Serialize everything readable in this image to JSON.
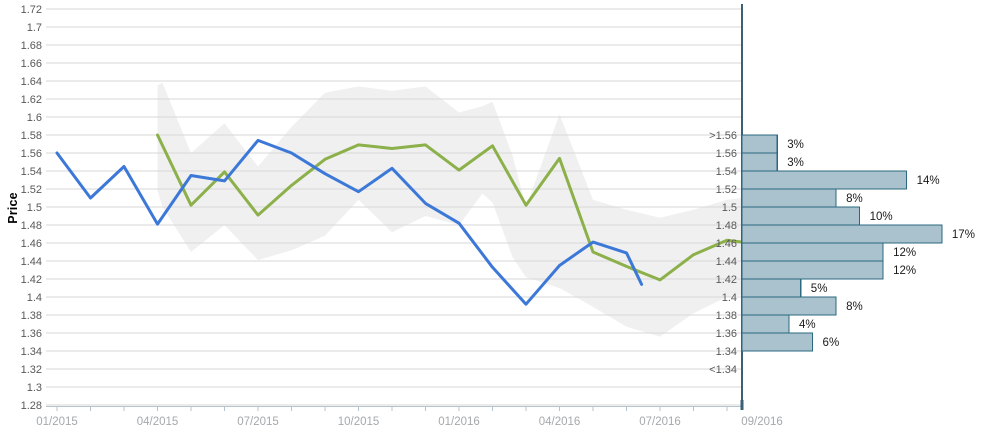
{
  "chart_data": {
    "type": "line",
    "title": "",
    "colors": {
      "band": "#f0f0f0",
      "grid": "#d7d7d7",
      "price_line": "#3c78d8",
      "forecast_line": "#8cb04a",
      "y_tick_text": "#595959",
      "x_tick_text": "#a5a9ad",
      "x_axis_line": "#b6c4ce",
      "hist_axis": "#3b5f75",
      "hist_bar_fill": "#a9c2ce",
      "hist_bar_border": "#2c6880",
      "hist_label_text": "#595959",
      "pct_text": "#1a1a1a",
      "price_label_text": "#3c78d8"
    },
    "price_axis": {
      "label": "Price",
      "min": 1.28,
      "max": 1.72,
      "step": 0.02,
      "tick_labels": [
        "1.72",
        "1.7",
        "1.68",
        "1.66",
        "1.64",
        "1.62",
        "1.6",
        "1.58",
        "1.56",
        "1.54",
        "1.52",
        "1.5",
        "1.48",
        "1.46",
        "1.44",
        "1.42",
        "1.4",
        "1.38",
        "1.36",
        "1.34",
        "1.32",
        "1.3",
        "1.28"
      ]
    },
    "x_axis": {
      "month_tick_count": 21,
      "labels": [
        {
          "m": 0,
          "text": "01/2015"
        },
        {
          "m": 3,
          "text": "04/2015"
        },
        {
          "m": 6,
          "text": "07/2015"
        },
        {
          "m": 9,
          "text": "10/2015"
        },
        {
          "m": 12,
          "text": "01/2016"
        },
        {
          "m": 15,
          "text": "04/2016"
        },
        {
          "m": 18,
          "text": "07/2016"
        }
      ],
      "end_label": "09/2016"
    },
    "series": [
      {
        "name": "forecast",
        "color": "#8cb04a",
        "points": [
          [
            3,
            1.58
          ],
          [
            4,
            1.502
          ],
          [
            5,
            1.539
          ],
          [
            6,
            1.491
          ],
          [
            7,
            1.524
          ],
          [
            8,
            1.553
          ],
          [
            9,
            1.569
          ],
          [
            10,
            1.565
          ],
          [
            11,
            1.569
          ],
          [
            12,
            1.541
          ],
          [
            13,
            1.568
          ],
          [
            14,
            1.502
          ],
          [
            15,
            1.554
          ],
          [
            16,
            1.45
          ],
          [
            17,
            1.434
          ],
          [
            18,
            1.419
          ],
          [
            19,
            1.447
          ],
          [
            20,
            1.463
          ],
          [
            20.45,
            1.461
          ]
        ]
      },
      {
        "name": "price-actual",
        "color": "#3c78d8",
        "points": [
          [
            0,
            1.56
          ],
          [
            1,
            1.51
          ],
          [
            2,
            1.545
          ],
          [
            3,
            1.481
          ],
          [
            4,
            1.535
          ],
          [
            5,
            1.529
          ],
          [
            6,
            1.574
          ],
          [
            7,
            1.56
          ],
          [
            8,
            1.537
          ],
          [
            9,
            1.517
          ],
          [
            10,
            1.543
          ],
          [
            11,
            1.504
          ],
          [
            12,
            1.482
          ],
          [
            13,
            1.433
          ],
          [
            14,
            1.392
          ],
          [
            15,
            1.435
          ],
          [
            16,
            1.461
          ],
          [
            17,
            1.449
          ],
          [
            17.45,
            1.414
          ]
        ]
      }
    ],
    "band": {
      "name": "confidence-band",
      "points": [
        [
          3,
          1.518,
          1.635
        ],
        [
          3.15,
          1.5,
          1.638
        ],
        [
          4,
          1.45,
          1.56
        ],
        [
          5,
          1.48,
          1.593
        ],
        [
          6,
          1.441,
          1.545
        ],
        [
          7,
          1.452,
          1.589
        ],
        [
          8,
          1.468,
          1.627
        ],
        [
          9,
          1.508,
          1.634
        ],
        [
          10,
          1.472,
          1.629
        ],
        [
          11,
          1.49,
          1.634
        ],
        [
          12,
          1.48,
          1.605
        ],
        [
          12.7,
          1.515,
          1.612
        ],
        [
          13,
          1.505,
          1.617
        ],
        [
          13.6,
          1.444,
          1.557
        ],
        [
          14,
          1.422,
          1.5
        ],
        [
          15,
          1.41,
          1.603
        ],
        [
          16,
          1.389,
          1.508
        ],
        [
          17,
          1.367,
          1.497
        ],
        [
          18,
          1.356,
          1.488
        ],
        [
          19,
          1.382,
          1.497
        ],
        [
          20,
          1.4,
          1.508
        ],
        [
          20.45,
          1.402,
          1.51
        ]
      ]
    },
    "histogram": {
      "boundary_labels": [
        ">1.56",
        "1.56",
        "1.54",
        "1.52",
        "1.5",
        "1.48",
        "1.46",
        "1.44",
        "1.42",
        "1.4",
        "1.38",
        "1.36",
        "1.34",
        "<1.34"
      ],
      "bar_values_pct": [
        3,
        3,
        14,
        8,
        10,
        17,
        12,
        12,
        5,
        8,
        4,
        6,
        0
      ],
      "pct_suffix": "%"
    }
  }
}
